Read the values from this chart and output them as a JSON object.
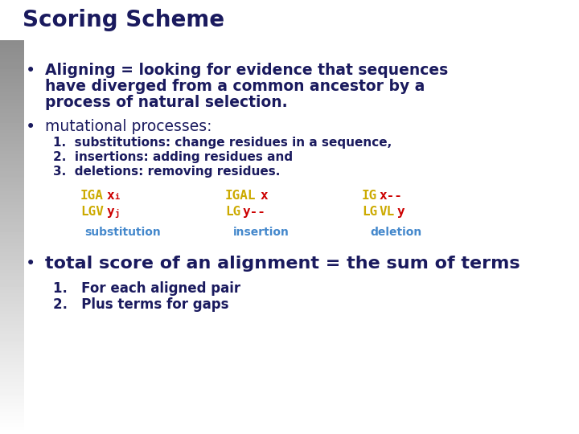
{
  "title": "Scoring Scheme",
  "bg_color": "#ffffff",
  "header_bar_color": "#1a1a6e",
  "dark_color": "#1a1a5e",
  "yellow_color": "#ccaa00",
  "red_color": "#cc0000",
  "label_color": "#4488cc",
  "bullet1_line1": "Aligning = looking for evidence that sequences",
  "bullet1_line2": "have diverged from a common ancestor by a",
  "bullet1_line3": "process of natural selection.",
  "bullet2": "mutational processes:",
  "numbered1": "1.  substitutions: change residues in a sequence,",
  "numbered2": "2.  insertions: adding residues and",
  "numbered3": "3.  deletions: removing residues.",
  "sub_label": "substitution",
  "ins_label": "insertion",
  "del_label": "deletion",
  "bullet3": "total score of an alignment = the sum of terms",
  "sub_item1": "1.   For each aligned pair",
  "sub_item2": "2.   Plus terms for gaps"
}
